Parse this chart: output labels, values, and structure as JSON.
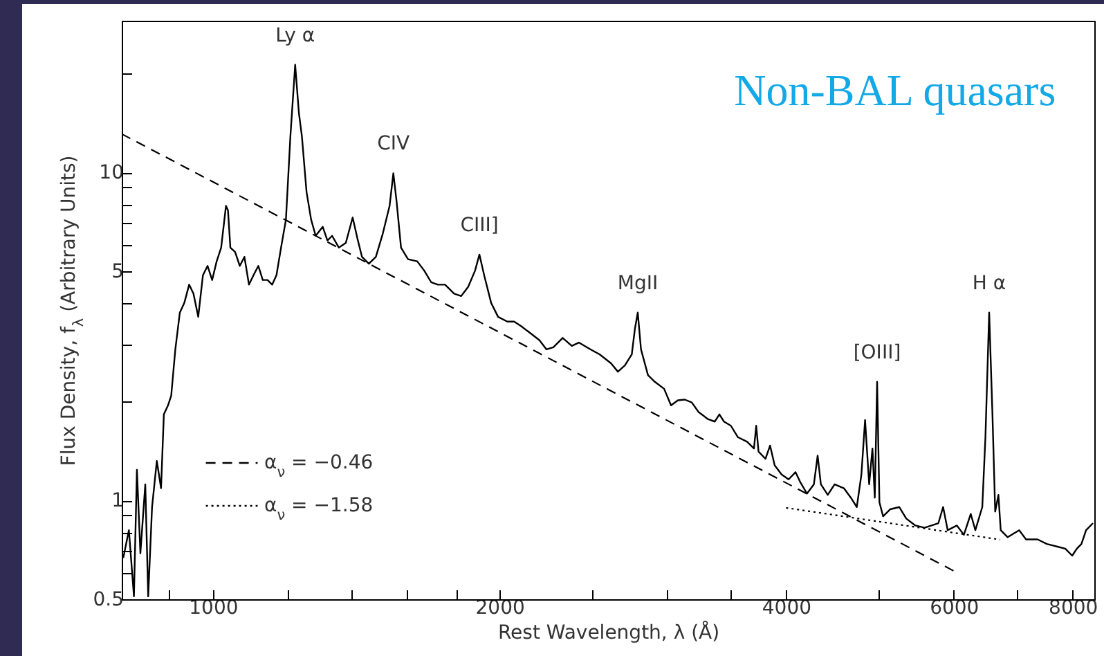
{
  "chart_data": {
    "type": "line",
    "title": "Non-BAL quasars",
    "xlabel": "Rest Wavelength, λ (Å)",
    "ylabel": "Flux Density, f$_{λ}$ (Arbitrary Units)",
    "log": "xy",
    "grid": false,
    "legend": "bottom left",
    "xlim": [
      802,
      8430
    ],
    "ylim": [
      0.5,
      29
    ],
    "xticks": [
      {
        "value": 900,
        "label": null
      },
      1000,
      {
        "value": 1200,
        "label": null
      },
      {
        "value": 1400,
        "label": null
      },
      {
        "value": 1600,
        "label": null
      },
      {
        "value": 1800,
        "label": null
      },
      2000,
      {
        "value": 2500,
        "label": null
      },
      {
        "value": 3000,
        "label": null
      },
      {
        "value": 3500,
        "label": null
      },
      4000,
      {
        "value": 5000,
        "label": null
      },
      6000,
      {
        "value": 7000,
        "label": null
      },
      8000
    ],
    "yticks": [
      0.5,
      {
        "value": 0.6,
        "label": null
      },
      {
        "value": 0.7,
        "label": null
      },
      {
        "value": 0.8,
        "label": null
      },
      {
        "value": 0.9,
        "label": null
      },
      1,
      {
        "value": 2,
        "label": null
      },
      {
        "value": 3,
        "label": null
      },
      {
        "value": 4,
        "label": null
      },
      5,
      {
        "value": 6,
        "label": null
      },
      {
        "value": 7,
        "label": null
      },
      {
        "value": 8,
        "label": null
      },
      {
        "value": 9,
        "label": null
      },
      10,
      {
        "value": 20,
        "label": null
      }
    ],
    "annotations": [
      {
        "text": "Ly α",
        "x": 1220,
        "y": 21.3
      },
      {
        "text": "CIV",
        "x": 1547,
        "y": 9.94
      },
      {
        "text": "CIII]",
        "x": 1905,
        "y": 5.62
      },
      {
        "text": "MgII",
        "x": 2794,
        "y": 3.74
      },
      {
        "text": "[OIII]",
        "x": 4985,
        "y": 2.3
      },
      {
        "text": "H α",
        "x": 6537,
        "y": 3.74
      }
    ],
    "series": [
      {
        "color": "#000000",
        "line_style": "solid",
        "x": [
          805,
          816,
          826,
          832,
          839,
          849,
          855,
          863,
          873,
          882,
          888,
          897,
          904,
          913,
          923,
          933,
          944,
          954,
          965,
          976,
          987,
          998,
          1009,
          1020,
          1032,
          1037,
          1043,
          1055,
          1067,
          1079,
          1091,
          1103,
          1116,
          1128,
          1141,
          1154,
          1166,
          1179,
          1193,
          1206,
          1220,
          1231,
          1240,
          1254,
          1268,
          1282,
          1304,
          1319,
          1334,
          1356,
          1379,
          1402,
          1418,
          1434,
          1458,
          1483,
          1508,
          1533,
          1547,
          1559,
          1576,
          1603,
          1639,
          1667,
          1695,
          1723,
          1753,
          1792,
          1823,
          1854,
          1885,
          1905,
          1927,
          1960,
          1993,
          2038,
          2072,
          2107,
          2154,
          2203,
          2240,
          2278,
          2330,
          2382,
          2423,
          2491,
          2547,
          2619,
          2663,
          2708,
          2754,
          2775,
          2794,
          2816,
          2864,
          2912,
          2978,
          3028,
          3079,
          3131,
          3184,
          3237,
          3311,
          3366,
          3404,
          3442,
          3500,
          3559,
          3640,
          3701,
          3721,
          3742,
          3805,
          3848,
          3891,
          3957,
          4024,
          4092,
          4138,
          4207,
          4278,
          4317,
          4351,
          4424,
          4498,
          4600,
          4678,
          4746,
          4799,
          4842,
          4890,
          4929,
          4957,
          4985,
          5013,
          5058,
          5144,
          5260,
          5349,
          5468,
          5592,
          5686,
          5781,
          5848,
          5913,
          6046,
          6149,
          6252,
          6322,
          6429,
          6478,
          6537,
          6589,
          6633,
          6685,
          6722,
          6836,
          7029,
          7147,
          7349,
          7516,
          7685,
          7858,
          7991,
          8081,
          8171,
          8264,
          8403
        ],
        "values": [
          0.668,
          0.812,
          0.51,
          1.24,
          0.69,
          1.12,
          0.51,
          0.955,
          1.32,
          1.09,
          1.83,
          1.95,
          2.09,
          2.89,
          3.74,
          4.0,
          4.55,
          4.27,
          3.63,
          4.86,
          5.19,
          4.7,
          5.36,
          5.9,
          7.91,
          7.66,
          5.9,
          5.72,
          5.19,
          5.53,
          4.55,
          4.86,
          5.19,
          4.7,
          4.7,
          4.55,
          4.86,
          5.9,
          7.18,
          12.9,
          21.3,
          15.2,
          12.9,
          8.72,
          7.18,
          6.41,
          6.83,
          6.2,
          6.41,
          5.9,
          6.1,
          7.29,
          6.3,
          5.53,
          5.27,
          5.53,
          6.51,
          7.91,
          9.94,
          8.18,
          5.9,
          5.44,
          5.36,
          5.02,
          4.63,
          4.55,
          4.55,
          4.27,
          4.2,
          4.48,
          5.02,
          5.62,
          4.86,
          4.0,
          3.63,
          3.51,
          3.51,
          3.4,
          3.24,
          3.08,
          2.89,
          2.93,
          3.13,
          2.96,
          3.03,
          2.89,
          2.79,
          2.62,
          2.47,
          2.58,
          2.79,
          3.34,
          3.74,
          2.89,
          2.41,
          2.3,
          2.19,
          1.95,
          2.02,
          2.03,
          1.99,
          1.86,
          1.77,
          1.74,
          1.83,
          1.74,
          1.69,
          1.56,
          1.51,
          1.44,
          1.69,
          1.41,
          1.34,
          1.47,
          1.28,
          1.2,
          1.16,
          1.22,
          1.14,
          1.05,
          1.12,
          1.37,
          1.12,
          1.04,
          1.12,
          1.09,
          1.02,
          0.955,
          1.2,
          1.76,
          1.12,
          1.44,
          1.02,
          2.3,
          0.987,
          0.895,
          0.94,
          0.955,
          0.881,
          0.839,
          0.826,
          0.839,
          0.853,
          0.955,
          0.812,
          0.839,
          0.786,
          0.91,
          0.812,
          0.955,
          1.56,
          3.74,
          1.83,
          0.925,
          1.04,
          0.812,
          0.773,
          0.812,
          0.761,
          0.761,
          0.737,
          0.725,
          0.713,
          0.679,
          0.713,
          0.737,
          0.812,
          0.853
        ]
      },
      {
        "name": "α$_{ν}$ =   −0.46",
        "color": "#000000",
        "line_style": "dashed",
        "x": [
          802,
          6000
        ],
        "values": [
          13.1,
          0.61
        ]
      },
      {
        "name": "α$_{ν}$ =   −1.58",
        "color": "#000000",
        "line_style": "dotted",
        "x": [
          4000,
          6710
        ],
        "values": [
          0.95,
          0.76
        ]
      }
    ]
  }
}
